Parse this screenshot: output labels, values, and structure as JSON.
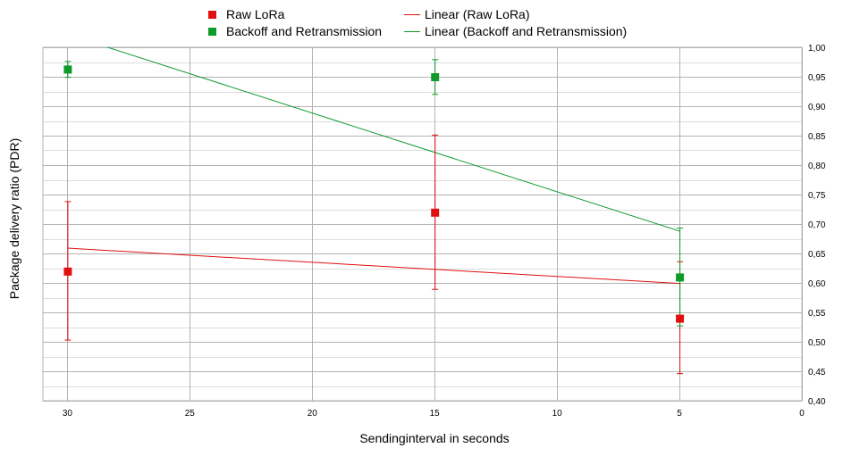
{
  "chart_data": {
    "type": "scatter",
    "title": "",
    "xlabel": "Sendinginterval in seconds",
    "ylabel": "Package delivery ratio (PDR)",
    "xlim": [
      0,
      31
    ],
    "x_reversed": true,
    "ylim": [
      0.4,
      1.0
    ],
    "x_ticks": [
      30,
      25,
      20,
      15,
      10,
      5,
      0
    ],
    "y_ticks": [
      "0,40",
      "0,45",
      "0,50",
      "0,55",
      "0,60",
      "0,65",
      "0,70",
      "0,75",
      "0,80",
      "0,85",
      "0,90",
      "0,95",
      "1,00"
    ],
    "y_axis_side": "right",
    "grid": true,
    "legend_position": "top",
    "series": [
      {
        "name": "Raw LoRa",
        "color": "#e01010",
        "x": [
          30,
          15,
          5
        ],
        "y": [
          0.62,
          0.72,
          0.54
        ],
        "err_low": [
          0.503,
          0.589,
          0.446
        ],
        "err_high": [
          0.738,
          0.851,
          0.636
        ]
      },
      {
        "name": "Backoff and Retransmission",
        "color": "#109a2a",
        "x": [
          30,
          15,
          5
        ],
        "y": [
          0.963,
          0.95,
          0.61
        ],
        "err_low": [
          0.949,
          0.92,
          0.527
        ],
        "err_high": [
          0.976,
          0.979,
          0.693
        ]
      }
    ],
    "trendlines": [
      {
        "name": "Linear (Raw LoRa)",
        "color": "#e01010",
        "x": [
          30,
          5
        ],
        "y": [
          0.659,
          0.599
        ]
      },
      {
        "name": "Linear (Backoff and Retransmission)",
        "color": "#109a2a",
        "x": [
          30,
          5
        ],
        "y": [
          1.022,
          0.688
        ]
      }
    ]
  }
}
